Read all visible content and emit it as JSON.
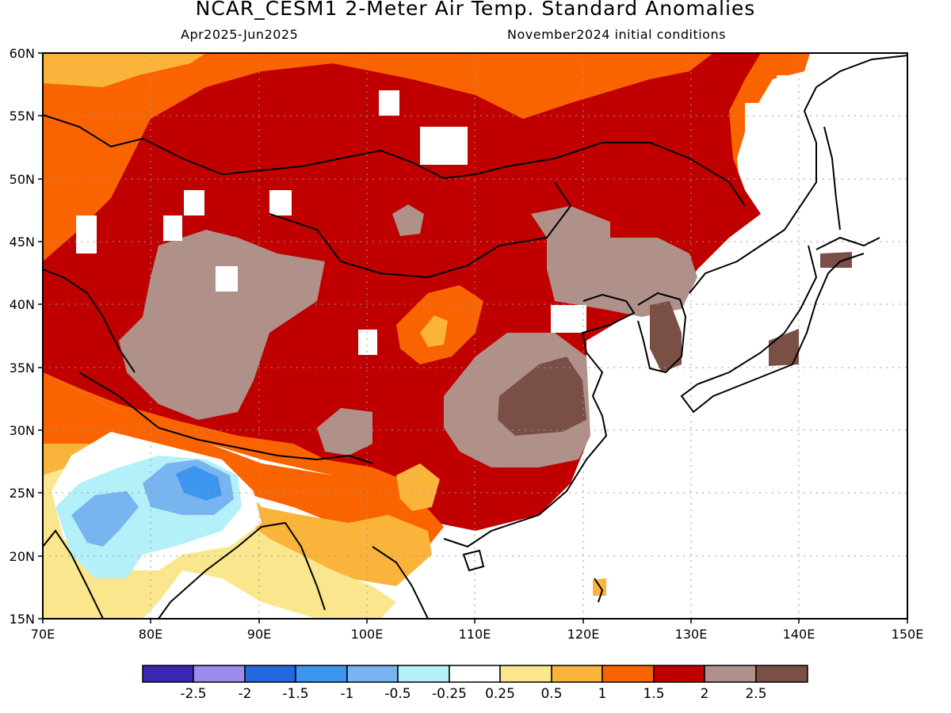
{
  "title": "NCAR_CESM1 2-Meter Air Temp. Standard Anomalies",
  "subtitle_left": "Apr2025-Jun2025",
  "subtitle_right": "November2024 initial conditions",
  "map": {
    "lon_range": [
      70,
      150
    ],
    "lat_range": [
      15,
      60
    ],
    "lon_ticks": [
      "70E",
      "80E",
      "90E",
      "100E",
      "110E",
      "120E",
      "130E",
      "140E",
      "150E"
    ],
    "lat_ticks": [
      "15N",
      "20N",
      "25N",
      "30N",
      "35N",
      "40N",
      "45N",
      "50N",
      "55N",
      "60N"
    ],
    "gridlines": "dotted"
  },
  "colorbar": {
    "colors": [
      "#3a28b4",
      "#9c8cf0",
      "#2468e0",
      "#3c96f0",
      "#78b4f0",
      "#b4f0fa",
      "#ffffff",
      "#fae68c",
      "#fab43c",
      "#fa6400",
      "#c00000",
      "#b0918a",
      "#7a5046"
    ],
    "labels": [
      "-2.5",
      "-2",
      "-1.5",
      "-1",
      "-0.5",
      "-0.25",
      "0.25",
      "0.5",
      "1",
      "1.5",
      "2",
      "2.5"
    ]
  }
}
